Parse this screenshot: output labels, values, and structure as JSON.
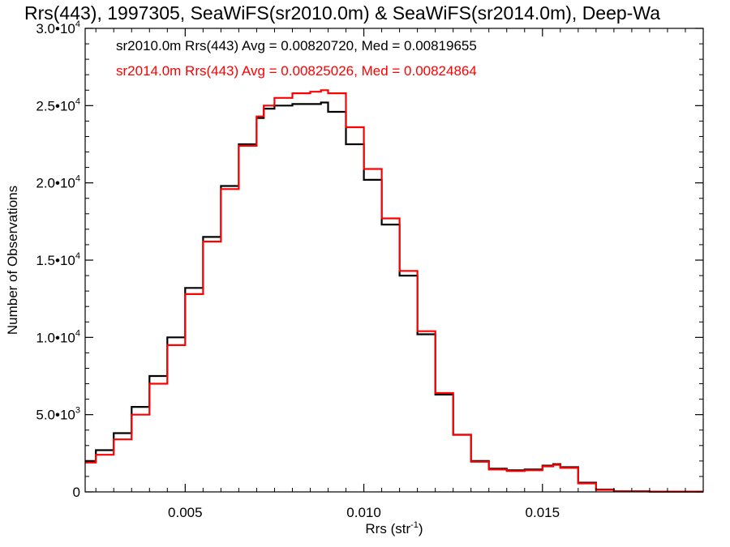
{
  "chart_data": {
    "type": "line",
    "title": "Rrs(443), 1997305, SeaWiFS(sr2010.0m) & SeaWiFS(sr2014.0m), Deep-Wa",
    "xlabel": "Rrs (str",
    "xlabel_sup": "-1",
    "xlabel_end": ")",
    "ylabel": "Number of Observations",
    "xlim": [
      0.0022,
      0.0195
    ],
    "ylim": [
      0,
      30000
    ],
    "x_ticks": [
      {
        "value": 0.005,
        "label": "0.005"
      },
      {
        "value": 0.01,
        "label": "0.010"
      },
      {
        "value": 0.015,
        "label": "0.015"
      }
    ],
    "y_ticks": [
      {
        "value": 0,
        "mant": "0",
        "exp": ""
      },
      {
        "value": 5000,
        "mant": "5.0•10",
        "exp": "3"
      },
      {
        "value": 10000,
        "mant": "1.0•10",
        "exp": "4"
      },
      {
        "value": 15000,
        "mant": "1.5•10",
        "exp": "4"
      },
      {
        "value": 20000,
        "mant": "2.0•10",
        "exp": "4"
      },
      {
        "value": 25000,
        "mant": "2.5•10",
        "exp": "4"
      },
      {
        "value": 30000,
        "mant": "3.0•10",
        "exp": "4"
      }
    ],
    "annotations": [
      {
        "text": "sr2010.0m Rrs(443) Avg = 0.00820720, Med = 0.00819655",
        "color": "#000000"
      },
      {
        "text": "sr2014.0m Rrs(443) Avg = 0.00825026, Med = 0.00824864",
        "color": "#ff0000"
      }
    ],
    "series": [
      {
        "color": "#000000",
        "step": true,
        "x": [
          0.0022,
          0.0025,
          0.003,
          0.0035,
          0.004,
          0.0045,
          0.005,
          0.0055,
          0.006,
          0.0065,
          0.007,
          0.0072,
          0.0075,
          0.008,
          0.0085,
          0.0088,
          0.009,
          0.0095,
          0.01,
          0.0105,
          0.011,
          0.0115,
          0.012,
          0.0125,
          0.013,
          0.0135,
          0.014,
          0.0145,
          0.015,
          0.0153,
          0.0155,
          0.016,
          0.0165,
          0.017,
          0.018,
          0.0195
        ],
        "y": [
          2000,
          2700,
          3800,
          5500,
          7500,
          10000,
          13200,
          16500,
          19800,
          22500,
          24200,
          24800,
          25000,
          25100,
          25100,
          25200,
          24600,
          22500,
          20200,
          17300,
          14000,
          10200,
          6300,
          3700,
          2000,
          1500,
          1400,
          1450,
          1700,
          1800,
          1600,
          600,
          150,
          40,
          20,
          20
        ]
      },
      {
        "color": "#ff0000",
        "step": true,
        "x": [
          0.0022,
          0.0025,
          0.003,
          0.0035,
          0.004,
          0.0045,
          0.005,
          0.0055,
          0.006,
          0.0065,
          0.007,
          0.0072,
          0.0075,
          0.008,
          0.0085,
          0.0088,
          0.009,
          0.0095,
          0.01,
          0.0105,
          0.011,
          0.0115,
          0.012,
          0.0125,
          0.013,
          0.0135,
          0.014,
          0.0145,
          0.015,
          0.0153,
          0.0155,
          0.016,
          0.0165,
          0.017,
          0.018,
          0.0195
        ],
        "y": [
          1900,
          2400,
          3400,
          5000,
          7000,
          9500,
          12800,
          16200,
          19600,
          22400,
          24300,
          25000,
          25500,
          25800,
          25900,
          26000,
          25800,
          23600,
          20900,
          17700,
          14300,
          10400,
          6400,
          3700,
          1950,
          1450,
          1350,
          1400,
          1650,
          1750,
          1550,
          550,
          130,
          35,
          20,
          20
        ]
      }
    ]
  }
}
